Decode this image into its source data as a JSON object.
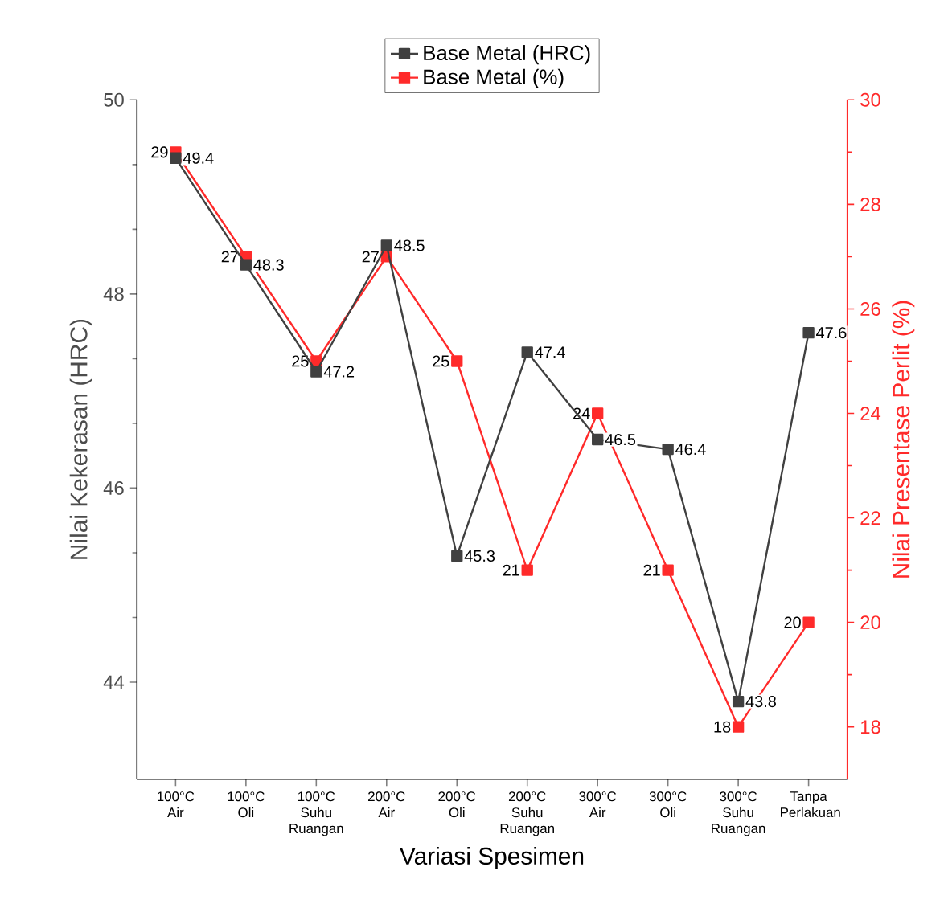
{
  "chart_data": {
    "type": "line",
    "categories": [
      "100°C Air",
      "100°C Oli",
      "100°C Suhu Ruangan",
      "200°C Air",
      "200°C Oli",
      "200°C Suhu Ruangan",
      "300°C Air",
      "300°C Oli",
      "300°C Suhu Ruangan",
      "Tanpa Perlakuan"
    ],
    "series": [
      {
        "name": "Base Metal (HRC)",
        "color": "#404040",
        "values": [
          49.4,
          48.3,
          47.2,
          48.5,
          45.3,
          47.4,
          46.5,
          46.4,
          43.8,
          47.6
        ]
      },
      {
        "name": "Base Metal (%)",
        "color": "#ff2a2a",
        "axis": "y2",
        "values": [
          29,
          27,
          25,
          27,
          25,
          21,
          24,
          21,
          18,
          20
        ]
      }
    ],
    "xlabel": "Variasi Spesimen",
    "ylabel": "Nilai Kekerasan (HRC)",
    "y2label": "Nilai Presentase Perlit (%)",
    "ylim": [
      43,
      50
    ],
    "yticks": [
      44,
      46,
      48,
      50
    ],
    "y2lim": [
      17,
      30
    ],
    "y2ticks": [
      18,
      20,
      22,
      24,
      26,
      28,
      30
    ],
    "legend": "top",
    "marker": "square",
    "line_style": "solid",
    "data_labels": true
  }
}
